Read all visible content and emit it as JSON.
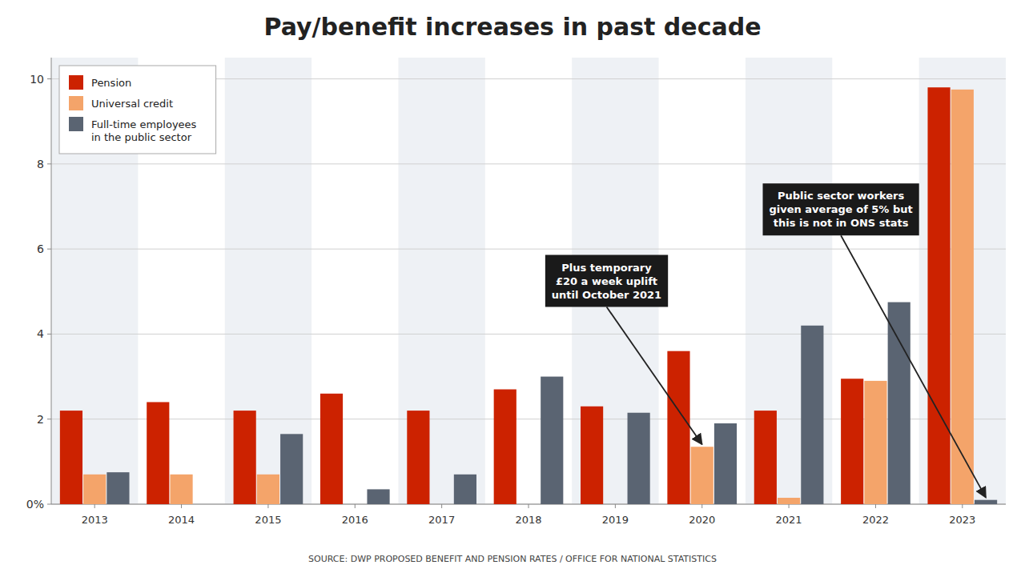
{
  "chart_data": {
    "type": "bar",
    "title": "Pay/benefit increases in past decade",
    "source": "SOURCE: DWP PROPOSED BENEFIT AND PENSION RATES / OFFICE FOR NATIONAL STATISTICS",
    "categories": [
      "2013",
      "2014",
      "2015",
      "2016",
      "2017",
      "2018",
      "2019",
      "2020",
      "2021",
      "2022",
      "2023"
    ],
    "series": [
      {
        "name": "Pension",
        "color": "#cc2200",
        "values": [
          2.2,
          2.4,
          2.2,
          2.6,
          2.2,
          2.7,
          2.3,
          3.6,
          2.2,
          2.95,
          9.8
        ]
      },
      {
        "name": "Universal credit",
        "color": "#f4a46a",
        "values": [
          0.7,
          0.7,
          0.7,
          0.0,
          0.0,
          0.0,
          0.0,
          1.35,
          0.15,
          2.9,
          9.75
        ]
      },
      {
        "name": "Full-time employees\nin the public sector",
        "color": "#5a6472",
        "values": [
          0.75,
          0.0,
          1.65,
          0.35,
          0.7,
          3.0,
          2.15,
          1.9,
          4.2,
          4.75,
          0.1
        ]
      }
    ],
    "ylim": [
      0,
      10.5
    ],
    "yticks": [
      {
        "value": 0,
        "label": "0%"
      },
      2,
      4,
      6,
      8,
      10
    ],
    "grid": true,
    "legend": "upper left",
    "annotations": [
      {
        "text": "Plus temporary\n£20 a week uplift\nuntil October 2021",
        "x": "2020",
        "series": "Universal credit"
      },
      {
        "text": "Public sector workers\ngiven average of 5% but\nthis is not in ONS stats",
        "x": "2023",
        "series": "Full-time employees\nin the public sector"
      }
    ]
  }
}
